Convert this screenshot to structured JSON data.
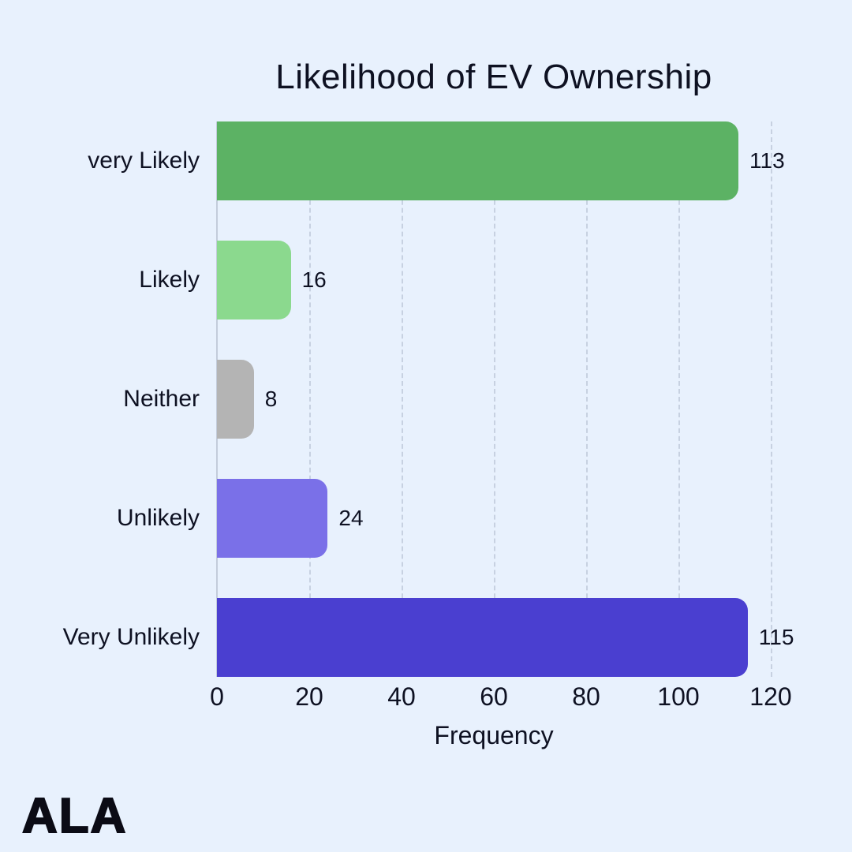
{
  "page": {
    "background": "#e8f1fd",
    "text_color": "#0e1122"
  },
  "logo": {
    "text": "ALA"
  },
  "chart_data": {
    "type": "bar",
    "orientation": "horizontal",
    "title": "Likelihood of EV Ownership",
    "categories": [
      "very Likely",
      "Likely",
      "Neither",
      "Unlikely",
      "Very Unlikely"
    ],
    "values": [
      113,
      16,
      8,
      24,
      115
    ],
    "bar_colors": [
      "#5cb264",
      "#8bd98e",
      "#b4b4b4",
      "#7a70e8",
      "#4a3fd0"
    ],
    "xlabel": "Frequency",
    "xlim": [
      0,
      120
    ],
    "xticks": [
      0,
      20,
      40,
      60,
      80,
      100,
      120
    ],
    "grid": {
      "axis": "x",
      "style": "dashed",
      "color": "#c0cadb"
    },
    "value_label_position": "outside-right",
    "legend": null
  }
}
